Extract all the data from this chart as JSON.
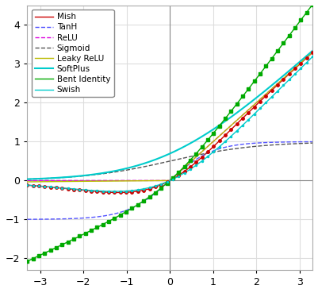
{
  "title": "",
  "xlim": [
    -3.3,
    3.3
  ],
  "ylim": [
    -2.3,
    4.5
  ],
  "xticks": [
    -3,
    -2,
    -1,
    0,
    1,
    2,
    3
  ],
  "yticks": [
    -2,
    -1,
    0,
    1,
    2,
    3,
    4
  ],
  "figsize": [
    4.01,
    3.69
  ],
  "dpi": 100,
  "functions": {
    "Mish": {
      "color": "#cc0000",
      "linestyle": "-",
      "marker": "o",
      "markersize": 2.5,
      "linewidth": 1.0
    },
    "TanH": {
      "color": "#5555ff",
      "linestyle": "--",
      "marker": null,
      "markersize": 0,
      "linewidth": 1.0
    },
    "ReLU": {
      "color": "#dd00dd",
      "linestyle": "--",
      "marker": null,
      "markersize": 0,
      "linewidth": 1.0
    },
    "Sigmoid": {
      "color": "#555555",
      "linestyle": "--",
      "marker": null,
      "markersize": 0,
      "linewidth": 1.0
    },
    "Leaky ReLU": {
      "color": "#bbbb00",
      "linestyle": "-",
      "marker": null,
      "markersize": 0,
      "linewidth": 1.0
    },
    "SoftPlus": {
      "color": "#00cccc",
      "linestyle": "-",
      "marker": null,
      "markersize": 0,
      "linewidth": 1.5
    },
    "Bent Identity": {
      "color": "#00aa00",
      "linestyle": "-",
      "marker": "s",
      "markersize": 2.5,
      "linewidth": 1.0
    },
    "Swish": {
      "color": "#00cccc",
      "linestyle": "-",
      "marker": ".",
      "markersize": 3,
      "linewidth": 1.0
    }
  },
  "grid_color": "#dddddd",
  "spine_color": "#aaaaaa",
  "background_color": "white",
  "marker_count": 50
}
